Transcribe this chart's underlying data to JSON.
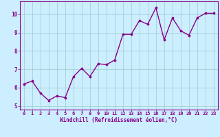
{
  "x": [
    0,
    1,
    2,
    3,
    4,
    5,
    6,
    7,
    8,
    9,
    10,
    11,
    12,
    13,
    14,
    15,
    16,
    17,
    18,
    19,
    20,
    21,
    22,
    23
  ],
  "y": [
    6.2,
    6.35,
    5.7,
    5.3,
    5.55,
    5.45,
    6.6,
    7.05,
    6.6,
    7.3,
    7.25,
    7.5,
    8.9,
    8.9,
    9.65,
    9.45,
    10.35,
    8.6,
    9.8,
    9.1,
    8.85,
    9.8,
    10.05,
    10.05
  ],
  "line_color": "#880088",
  "marker": "o",
  "markersize": 2.2,
  "linewidth": 1.0,
  "bg_color": "#cceeff",
  "grid_color": "#99cccc",
  "xlabel": "Windchill (Refroidissement éolien,°C)",
  "xlim": [
    -0.5,
    23.5
  ],
  "ylim": [
    4.8,
    10.7
  ],
  "xticks": [
    0,
    1,
    2,
    3,
    4,
    5,
    6,
    7,
    8,
    9,
    10,
    11,
    12,
    13,
    14,
    15,
    16,
    17,
    18,
    19,
    20,
    21,
    22,
    23
  ],
  "yticks": [
    5,
    6,
    7,
    8,
    9,
    10
  ],
  "xtick_fontsize": 5.0,
  "ytick_fontsize": 5.5,
  "xlabel_fontsize": 5.5
}
